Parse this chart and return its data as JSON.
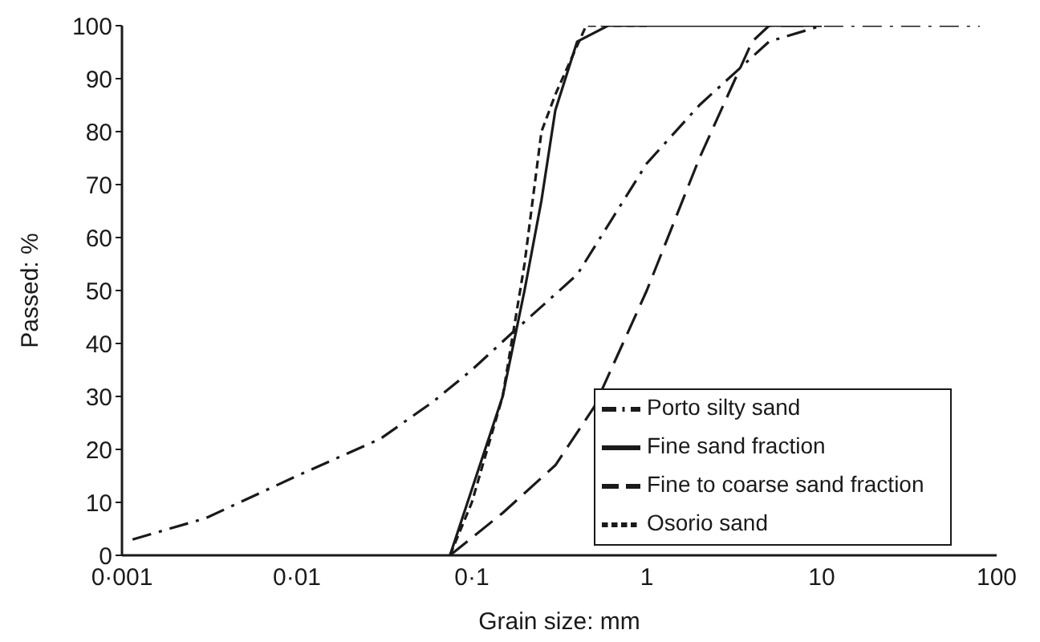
{
  "chart_data": {
    "type": "line",
    "xlabel": "Grain size: mm",
    "ylabel": "Passed: %",
    "log": "x",
    "xlim": [
      0.001,
      100
    ],
    "xticks": [
      {
        "value": 0.001,
        "label": "0·001"
      },
      {
        "value": 0.01,
        "label": "0·01"
      },
      {
        "value": 0.1,
        "label": "0·1"
      },
      1,
      10,
      100
    ],
    "ylim": [
      0,
      100
    ],
    "yticks": [
      0,
      10,
      20,
      30,
      40,
      50,
      60,
      70,
      80,
      90,
      100
    ],
    "grid": false,
    "legend": "bottom right",
    "marker": "none",
    "series": [
      {
        "name": "Porto silty sand",
        "color": "#1a1a1a",
        "line_style": "dashdot",
        "x": [
          0.00115,
          0.003,
          0.01,
          0.03,
          0.06,
          0.1,
          0.17,
          0.4,
          1,
          2,
          5,
          10,
          80
        ],
        "values": [
          3,
          7,
          15,
          22,
          29,
          35,
          42,
          53,
          74,
          85,
          97,
          100,
          100
        ]
      },
      {
        "name": "Fine sand fraction",
        "color": "#1a1a1a",
        "line_style": "solid",
        "x": [
          0.075,
          0.15,
          0.2,
          0.25,
          0.3,
          0.4,
          0.6,
          10
        ],
        "values": [
          0,
          30,
          50,
          67,
          84,
          97,
          100,
          100
        ]
      },
      {
        "name": "Fine to coarse sand fraction",
        "color": "#1a1a1a",
        "line_style": "dashed",
        "x": [
          0.075,
          0.15,
          0.3,
          0.5,
          1,
          2,
          4,
          5,
          10
        ],
        "values": [
          0,
          8,
          17,
          28,
          50,
          75,
          97,
          100,
          100
        ]
      },
      {
        "name": "Osorio sand",
        "color": "#1a1a1a",
        "line_style": "dotted",
        "x": [
          0.075,
          0.1,
          0.15,
          0.2,
          0.25,
          0.3,
          0.45,
          1
        ],
        "values": [
          0,
          10,
          30,
          55,
          80,
          87,
          100,
          100
        ]
      }
    ]
  }
}
